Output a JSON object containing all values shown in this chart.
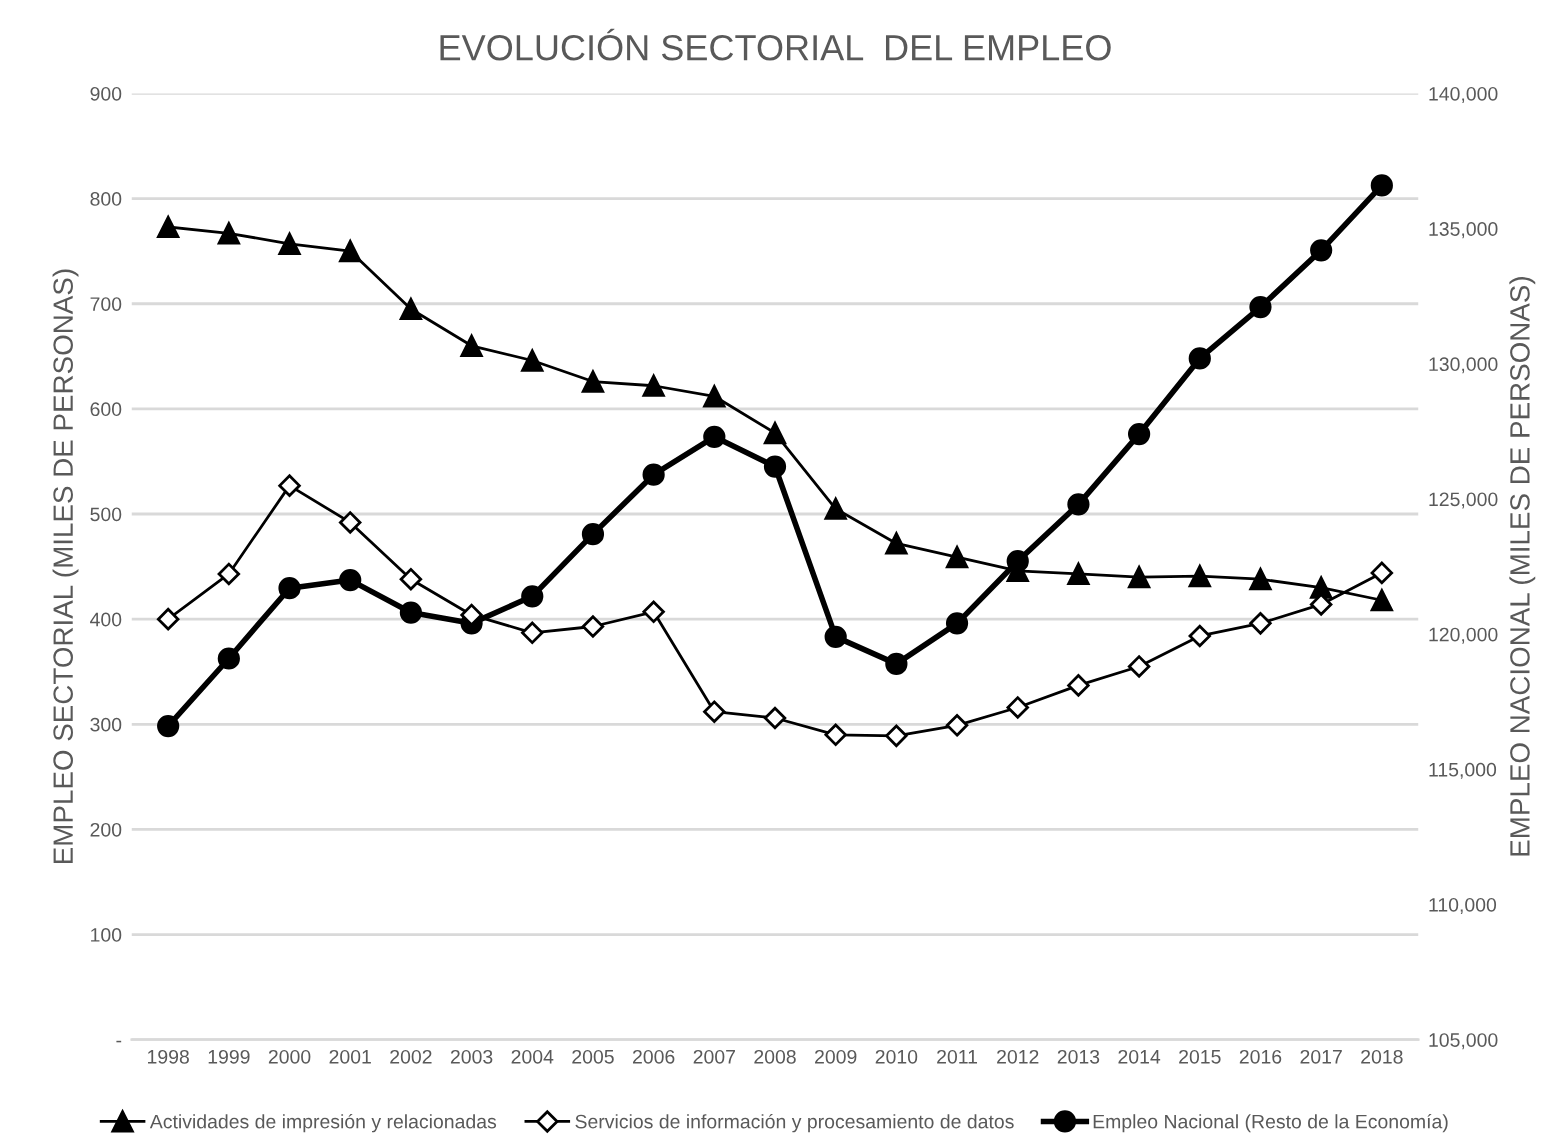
{
  "chart_data": {
    "type": "line",
    "title": "EVOLUCIÓN SECTORIAL  DEL EMPLEO",
    "ylabel": "EMPLEO SECTORIAL (MILES DE PERSONAS)",
    "y2label": "EMPLEO NACIONAL (MILES DE PERSONAS)",
    "categories": [
      "1998",
      "1999",
      "2000",
      "2001",
      "2002",
      "2003",
      "2004",
      "2005",
      "2006",
      "2007",
      "2008",
      "2009",
      "2010",
      "2011",
      "2012",
      "2013",
      "2014",
      "2015",
      "2016",
      "2017",
      "2018"
    ],
    "series": [
      {
        "name": "Actividades de impresión y relacionadas",
        "color": "#000000",
        "marker": "triangle",
        "values": [
          773,
          767,
          757,
          750,
          695,
          660,
          646,
          626,
          622,
          612,
          577,
          505,
          472,
          459,
          446,
          443,
          440,
          441,
          438,
          430,
          418
        ]
      },
      {
        "name": "Servicios de información y procesamiento de datos",
        "color": "#000000",
        "marker": "diamond",
        "values": [
          400,
          443,
          527,
          492,
          438,
          404,
          387,
          393,
          407,
          312,
          306,
          290,
          289,
          299,
          316,
          337,
          355,
          384,
          396,
          414,
          444
        ]
      },
      {
        "name": "Empleo Nacional (Resto de la Economía)",
        "color": "#000000",
        "marker": "circle",
        "axis": "y2",
        "values": [
          116600,
          119100,
          121700,
          122000,
          120800,
          120400,
          121400,
          123700,
          125900,
          127300,
          126200,
          119900,
          118900,
          120400,
          122700,
          124800,
          127400,
          130200,
          132100,
          134200,
          136600
        ]
      }
    ],
    "ylim": [
      0,
      900
    ],
    "yticks": [
      {
        "value": 0,
        "label": "-"
      },
      100,
      200,
      300,
      400,
      500,
      600,
      700,
      800,
      900
    ],
    "y2lim": [
      105000,
      140000
    ],
    "y2ticks": [
      {
        "value": 105000,
        "label": "105,000"
      },
      {
        "value": 110000,
        "label": "110,000"
      },
      {
        "value": 115000,
        "label": "115,000"
      },
      {
        "value": 120000,
        "label": "120,000"
      },
      {
        "value": 125000,
        "label": "125,000"
      },
      {
        "value": 130000,
        "label": "130,000"
      },
      {
        "value": 135000,
        "label": "135,000"
      },
      {
        "value": 140000,
        "label": "140,000"
      }
    ],
    "grid": "y",
    "legend": "bottom"
  }
}
